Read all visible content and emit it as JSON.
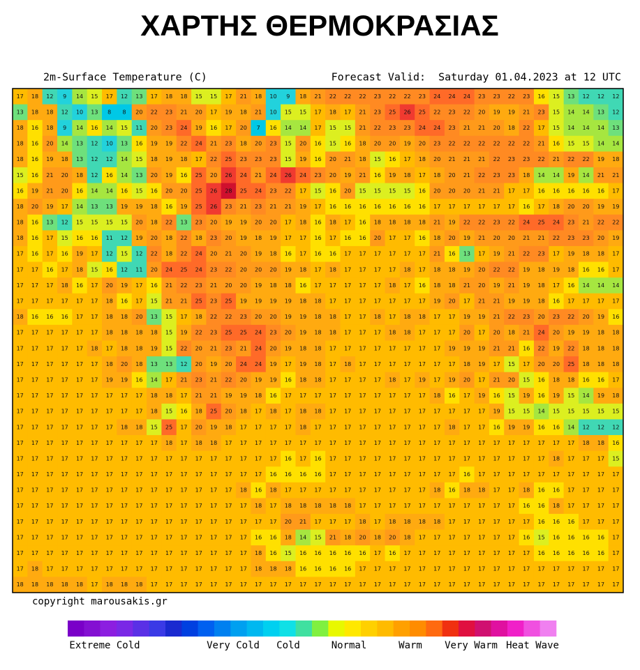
{
  "title": "ΧΑΡΤΗΣ ΘΕΡΜΟΚΡΑΣΙΑΣ",
  "header": {
    "left": "2m-Surface Temperature (C)",
    "right": "Forecast Valid:  Saturday 01.04.2023 at 12 UTC"
  },
  "footer": "copyright marousakis.gr",
  "legend": [
    "Extreme Cold",
    "Very Cold",
    "Cold",
    "Normal",
    "Warm",
    "Very Warm",
    "Heat Wave"
  ],
  "map": {
    "grid": [
      [
        17,
        18,
        12,
        9,
        14,
        15,
        17,
        12,
        13,
        17,
        18,
        18,
        15,
        15,
        17,
        21,
        18,
        10,
        9,
        18,
        21,
        22,
        22,
        22,
        23,
        22,
        22,
        23,
        24,
        24,
        24,
        23,
        23,
        22,
        23,
        16,
        15,
        13,
        12,
        12,
        12
      ],
      [
        13,
        18,
        18,
        12,
        10,
        13,
        8,
        8,
        20,
        22,
        23,
        21,
        20,
        17,
        19,
        18,
        21,
        10,
        15,
        15,
        17,
        18,
        17,
        21,
        23,
        25,
        26,
        25,
        22,
        23,
        22,
        20,
        19,
        19,
        21,
        23,
        15,
        14,
        14,
        13,
        12
      ],
      [
        18,
        16,
        18,
        9,
        14,
        16,
        14,
        15,
        11,
        20,
        23,
        24,
        19,
        16,
        17,
        20,
        7,
        16,
        14,
        14,
        17,
        15,
        15,
        21,
        22,
        23,
        23,
        24,
        24,
        23,
        21,
        21,
        20,
        18,
        22,
        17,
        15,
        14,
        14,
        14,
        13
      ],
      [
        18,
        16,
        20,
        14,
        13,
        12,
        10,
        13,
        16,
        19,
        19,
        22,
        24,
        21,
        23,
        18,
        20,
        23,
        15,
        20,
        16,
        15,
        16,
        18,
        20,
        20,
        19,
        20,
        23,
        22,
        22,
        22,
        22,
        22,
        22,
        21,
        16,
        15,
        15,
        14,
        14
      ],
      [
        18,
        16,
        19,
        18,
        13,
        12,
        12,
        14,
        15,
        18,
        19,
        18,
        17,
        22,
        25,
        23,
        23,
        23,
        15,
        19,
        16,
        20,
        21,
        18,
        15,
        16,
        17,
        18,
        20,
        21,
        21,
        21,
        22,
        23,
        23,
        22,
        21,
        22,
        22,
        19,
        18
      ],
      [
        15,
        16,
        21,
        20,
        18,
        12,
        16,
        14,
        13,
        20,
        19,
        16,
        25,
        20,
        26,
        24,
        21,
        24,
        26,
        24,
        23,
        20,
        19,
        21,
        16,
        19,
        18,
        17,
        18,
        20,
        21,
        22,
        23,
        23,
        18,
        14,
        14,
        19,
        14,
        21,
        21
      ],
      [
        16,
        19,
        21,
        20,
        16,
        14,
        14,
        16,
        15,
        16,
        20,
        20,
        25,
        26,
        28,
        25,
        24,
        23,
        22,
        17,
        15,
        16,
        20,
        15,
        15,
        15,
        15,
        16,
        20,
        20,
        20,
        21,
        21,
        17,
        17,
        16,
        16,
        16,
        16,
        16,
        17
      ],
      [
        18,
        20,
        19,
        17,
        14,
        13,
        13,
        19,
        19,
        18,
        16,
        19,
        25,
        26,
        23,
        21,
        23,
        21,
        21,
        19,
        17,
        16,
        16,
        16,
        16,
        16,
        16,
        16,
        17,
        17,
        17,
        17,
        17,
        17,
        16,
        17,
        18,
        20,
        20,
        19,
        19
      ],
      [
        18,
        16,
        13,
        12,
        15,
        15,
        15,
        15,
        20,
        18,
        22,
        13,
        23,
        20,
        19,
        19,
        20,
        20,
        17,
        18,
        16,
        18,
        17,
        16,
        18,
        18,
        18,
        18,
        21,
        19,
        22,
        22,
        23,
        22,
        24,
        25,
        24,
        23,
        21,
        22,
        22
      ],
      [
        18,
        16,
        17,
        15,
        16,
        16,
        11,
        12,
        19,
        20,
        18,
        22,
        18,
        23,
        20,
        19,
        18,
        19,
        17,
        17,
        16,
        17,
        16,
        16,
        20,
        17,
        17,
        16,
        18,
        20,
        19,
        21,
        20,
        20,
        21,
        21,
        22,
        23,
        23,
        20,
        19
      ],
      [
        17,
        16,
        17,
        16,
        19,
        17,
        12,
        15,
        12,
        22,
        18,
        22,
        24,
        20,
        21,
        20,
        19,
        18,
        16,
        17,
        16,
        16,
        17,
        17,
        17,
        17,
        17,
        17,
        21,
        16,
        13,
        17,
        19,
        21,
        22,
        23,
        17,
        19,
        18,
        18,
        17
      ],
      [
        17,
        17,
        16,
        17,
        18,
        15,
        16,
        12,
        11,
        20,
        24,
        25,
        24,
        23,
        22,
        20,
        20,
        20,
        19,
        18,
        17,
        18,
        17,
        17,
        17,
        17,
        18,
        17,
        18,
        18,
        19,
        20,
        22,
        22,
        19,
        18,
        19,
        18,
        16,
        16,
        17
      ],
      [
        17,
        17,
        17,
        18,
        16,
        17,
        20,
        19,
        17,
        16,
        21,
        22,
        23,
        21,
        20,
        20,
        19,
        18,
        18,
        16,
        17,
        17,
        17,
        17,
        17,
        18,
        17,
        16,
        18,
        18,
        21,
        20,
        19,
        21,
        19,
        18,
        17,
        16,
        14,
        14,
        14
      ],
      [
        17,
        17,
        17,
        17,
        17,
        17,
        18,
        16,
        17,
        15,
        21,
        21,
        25,
        23,
        25,
        19,
        19,
        19,
        19,
        18,
        18,
        17,
        17,
        17,
        17,
        17,
        17,
        17,
        19,
        20,
        17,
        21,
        21,
        19,
        19,
        18,
        16,
        17,
        17,
        17,
        17
      ],
      [
        18,
        16,
        16,
        16,
        17,
        17,
        18,
        18,
        20,
        13,
        15,
        17,
        18,
        22,
        22,
        23,
        20,
        20,
        19,
        19,
        18,
        18,
        17,
        17,
        18,
        17,
        18,
        18,
        17,
        17,
        19,
        19,
        21,
        22,
        23,
        20,
        23,
        22,
        20,
        19,
        16
      ],
      [
        17,
        17,
        17,
        17,
        17,
        17,
        18,
        18,
        18,
        18,
        15,
        19,
        22,
        23,
        25,
        25,
        24,
        23,
        20,
        19,
        18,
        18,
        17,
        17,
        17,
        18,
        18,
        17,
        17,
        17,
        20,
        17,
        20,
        18,
        21,
        24,
        20,
        19,
        19,
        18,
        18
      ],
      [
        17,
        17,
        17,
        17,
        17,
        18,
        17,
        18,
        18,
        19,
        15,
        22,
        20,
        21,
        23,
        21,
        24,
        20,
        19,
        18,
        18,
        17,
        17,
        17,
        17,
        17,
        17,
        17,
        17,
        19,
        19,
        19,
        21,
        21,
        16,
        22,
        19,
        22,
        18,
        18,
        18
      ],
      [
        17,
        17,
        17,
        17,
        17,
        17,
        18,
        20,
        18,
        13,
        13,
        12,
        20,
        19,
        20,
        24,
        24,
        19,
        17,
        19,
        18,
        17,
        18,
        17,
        17,
        17,
        17,
        17,
        17,
        17,
        18,
        19,
        17,
        15,
        17,
        20,
        20,
        25,
        18,
        18,
        18
      ],
      [
        17,
        17,
        17,
        17,
        17,
        17,
        19,
        19,
        16,
        14,
        17,
        21,
        23,
        21,
        22,
        20,
        19,
        19,
        16,
        18,
        18,
        17,
        17,
        17,
        17,
        18,
        17,
        19,
        17,
        19,
        20,
        17,
        21,
        20,
        15,
        16,
        18,
        18,
        16,
        16,
        17
      ],
      [
        17,
        17,
        17,
        17,
        17,
        17,
        17,
        17,
        17,
        18,
        18,
        17,
        21,
        21,
        19,
        19,
        18,
        16,
        17,
        17,
        17,
        17,
        17,
        17,
        17,
        17,
        17,
        17,
        18,
        16,
        17,
        19,
        16,
        15,
        19,
        16,
        19,
        15,
        14,
        19,
        18
      ],
      [
        17,
        17,
        17,
        17,
        17,
        17,
        17,
        17,
        17,
        18,
        15,
        16,
        18,
        25,
        20,
        18,
        17,
        18,
        17,
        18,
        18,
        17,
        17,
        17,
        17,
        17,
        17,
        17,
        17,
        17,
        17,
        17,
        19,
        15,
        15,
        14,
        15,
        15,
        15,
        15,
        15
      ],
      [
        17,
        17,
        17,
        17,
        17,
        17,
        17,
        18,
        18,
        15,
        25,
        17,
        20,
        19,
        18,
        17,
        17,
        17,
        17,
        18,
        17,
        17,
        17,
        17,
        17,
        17,
        17,
        17,
        17,
        18,
        17,
        17,
        16,
        19,
        19,
        16,
        16,
        14,
        12,
        12,
        12
      ],
      [
        17,
        17,
        17,
        17,
        17,
        17,
        17,
        17,
        17,
        17,
        18,
        17,
        18,
        18,
        17,
        17,
        17,
        17,
        17,
        17,
        17,
        17,
        17,
        17,
        17,
        17,
        17,
        17,
        17,
        17,
        17,
        17,
        17,
        17,
        17,
        17,
        17,
        17,
        18,
        18,
        16
      ],
      [
        17,
        17,
        17,
        17,
        17,
        17,
        17,
        17,
        17,
        17,
        17,
        17,
        17,
        17,
        17,
        17,
        17,
        17,
        16,
        17,
        16,
        17,
        17,
        17,
        17,
        17,
        17,
        17,
        17,
        17,
        17,
        17,
        17,
        17,
        17,
        17,
        18,
        17,
        17,
        17,
        15
      ],
      [
        17,
        17,
        17,
        17,
        17,
        17,
        17,
        17,
        17,
        17,
        17,
        17,
        17,
        17,
        17,
        17,
        17,
        16,
        16,
        16,
        16,
        17,
        17,
        17,
        17,
        17,
        17,
        17,
        17,
        17,
        16,
        17,
        17,
        17,
        17,
        17,
        17,
        17,
        17,
        17,
        17
      ],
      [
        17,
        17,
        17,
        17,
        17,
        17,
        17,
        17,
        17,
        17,
        17,
        17,
        17,
        17,
        17,
        18,
        16,
        18,
        17,
        17,
        17,
        17,
        17,
        17,
        17,
        17,
        17,
        17,
        18,
        16,
        18,
        18,
        17,
        17,
        18,
        16,
        16,
        17,
        17,
        17,
        17
      ],
      [
        17,
        17,
        17,
        17,
        17,
        17,
        17,
        17,
        17,
        17,
        17,
        17,
        17,
        17,
        17,
        17,
        18,
        17,
        18,
        18,
        18,
        18,
        18,
        17,
        17,
        17,
        17,
        17,
        17,
        17,
        17,
        17,
        17,
        17,
        16,
        16,
        18,
        17,
        17,
        17,
        17
      ],
      [
        17,
        17,
        17,
        17,
        17,
        17,
        17,
        17,
        17,
        17,
        17,
        17,
        17,
        17,
        17,
        17,
        17,
        17,
        20,
        21,
        17,
        17,
        17,
        18,
        17,
        18,
        18,
        18,
        18,
        17,
        17,
        17,
        17,
        17,
        17,
        16,
        16,
        16,
        17,
        17,
        17
      ],
      [
        17,
        17,
        17,
        17,
        17,
        17,
        17,
        17,
        17,
        17,
        17,
        17,
        17,
        17,
        17,
        17,
        16,
        16,
        18,
        14,
        15,
        21,
        18,
        20,
        18,
        20,
        18,
        17,
        17,
        17,
        17,
        17,
        17,
        17,
        16,
        15,
        16,
        16,
        16,
        16,
        17
      ],
      [
        17,
        17,
        17,
        17,
        17,
        17,
        17,
        17,
        17,
        17,
        17,
        17,
        17,
        17,
        17,
        17,
        18,
        16,
        15,
        16,
        16,
        16,
        16,
        16,
        17,
        16,
        17,
        17,
        17,
        17,
        17,
        17,
        17,
        17,
        17,
        16,
        16,
        16,
        16,
        16,
        17
      ],
      [
        17,
        18,
        17,
        17,
        17,
        17,
        17,
        17,
        17,
        17,
        17,
        17,
        17,
        17,
        17,
        17,
        18,
        18,
        18,
        16,
        16,
        16,
        16,
        17,
        17,
        17,
        17,
        17,
        17,
        17,
        17,
        17,
        17,
        17,
        17,
        17,
        17,
        17,
        17,
        17,
        17
      ],
      [
        18,
        18,
        18,
        18,
        18,
        17,
        18,
        18,
        18,
        17,
        17,
        17,
        17,
        17,
        17,
        17,
        17,
        17,
        17,
        17,
        17,
        17,
        17,
        17,
        17,
        17,
        17,
        17,
        17,
        17,
        17,
        17,
        17,
        17,
        17,
        17,
        17,
        17,
        17,
        17,
        17
      ]
    ]
  }
}
